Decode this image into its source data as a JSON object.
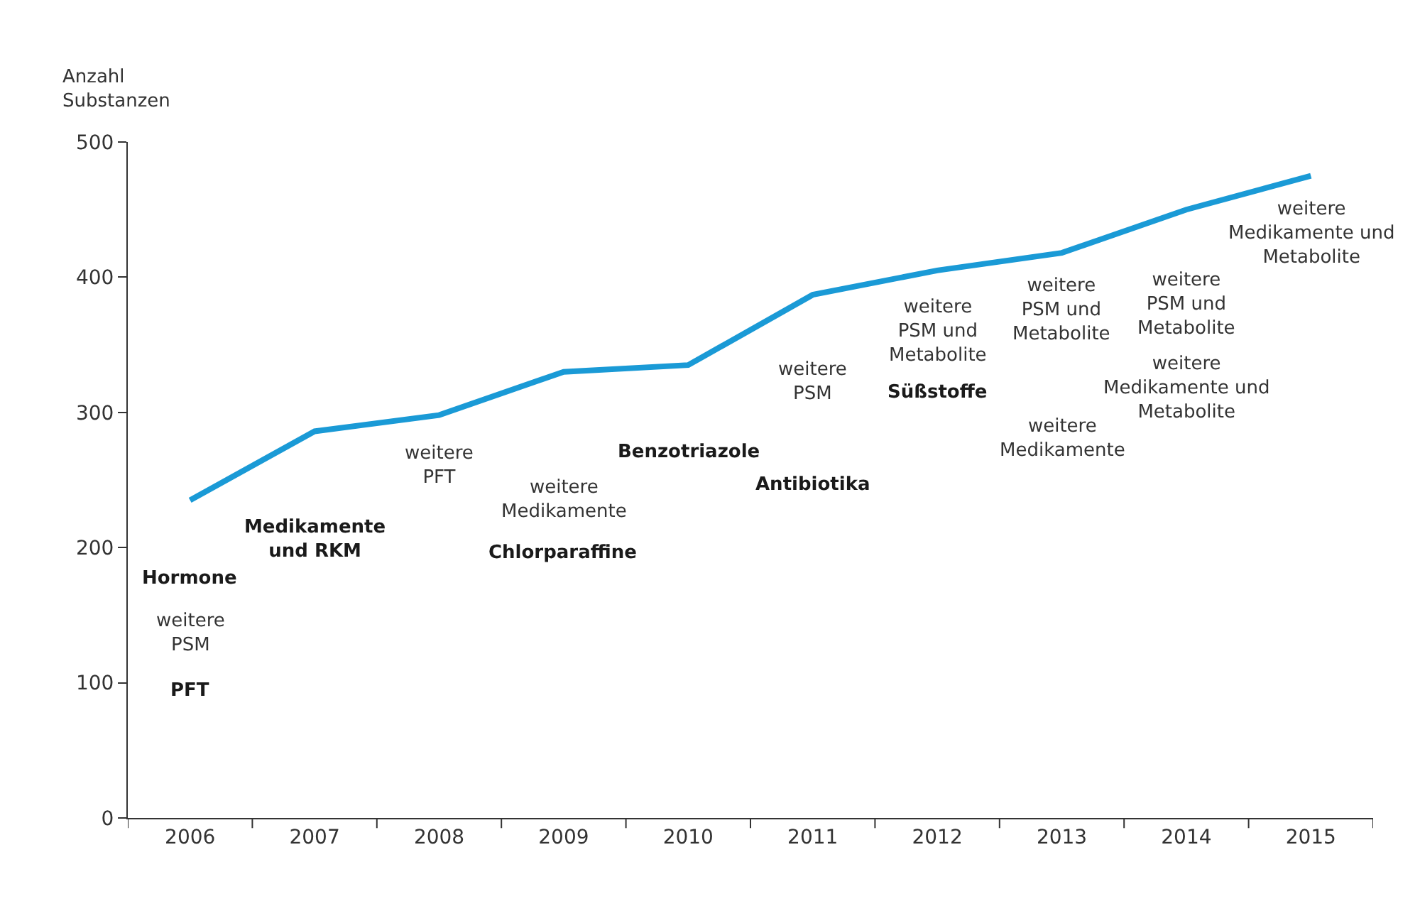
{
  "chart_data": {
    "type": "line",
    "ylabel": "Anzahl\nSubstanzen",
    "categories": [
      "2006",
      "2007",
      "2008",
      "2009",
      "2010",
      "2011",
      "2012",
      "2013",
      "2014",
      "2015"
    ],
    "series": [
      {
        "color": "#1a9ad6",
        "values": [
          235,
          286,
          298,
          330,
          335,
          387,
          405,
          418,
          450,
          475
        ]
      }
    ],
    "ylim": [
      0,
      500
    ],
    "yticks": [
      0,
      100,
      200,
      300,
      400,
      500
    ],
    "marker": "none",
    "line_style": "solid",
    "annotations": [
      "Hormone",
      "weitere\nPSM",
      "PFT",
      "Medikamente\nund RKM",
      "weitere\nPFT",
      "weitere\nMedikamente",
      "Chlorparaffine",
      "Benzotriazole",
      "Antibiotika",
      "weitere\nPSM",
      "weitere\nPSM und\nMetabolite",
      "Süßstoffe",
      "weitere\nPSM und\nMetabolite",
      "weitere\nMedikamente",
      "weitere\nPSM und\nMetabolite",
      "weitere\nMedikamente und\nMetabolite",
      "weitere\nMedikamente und\nMetabolite"
    ]
  }
}
